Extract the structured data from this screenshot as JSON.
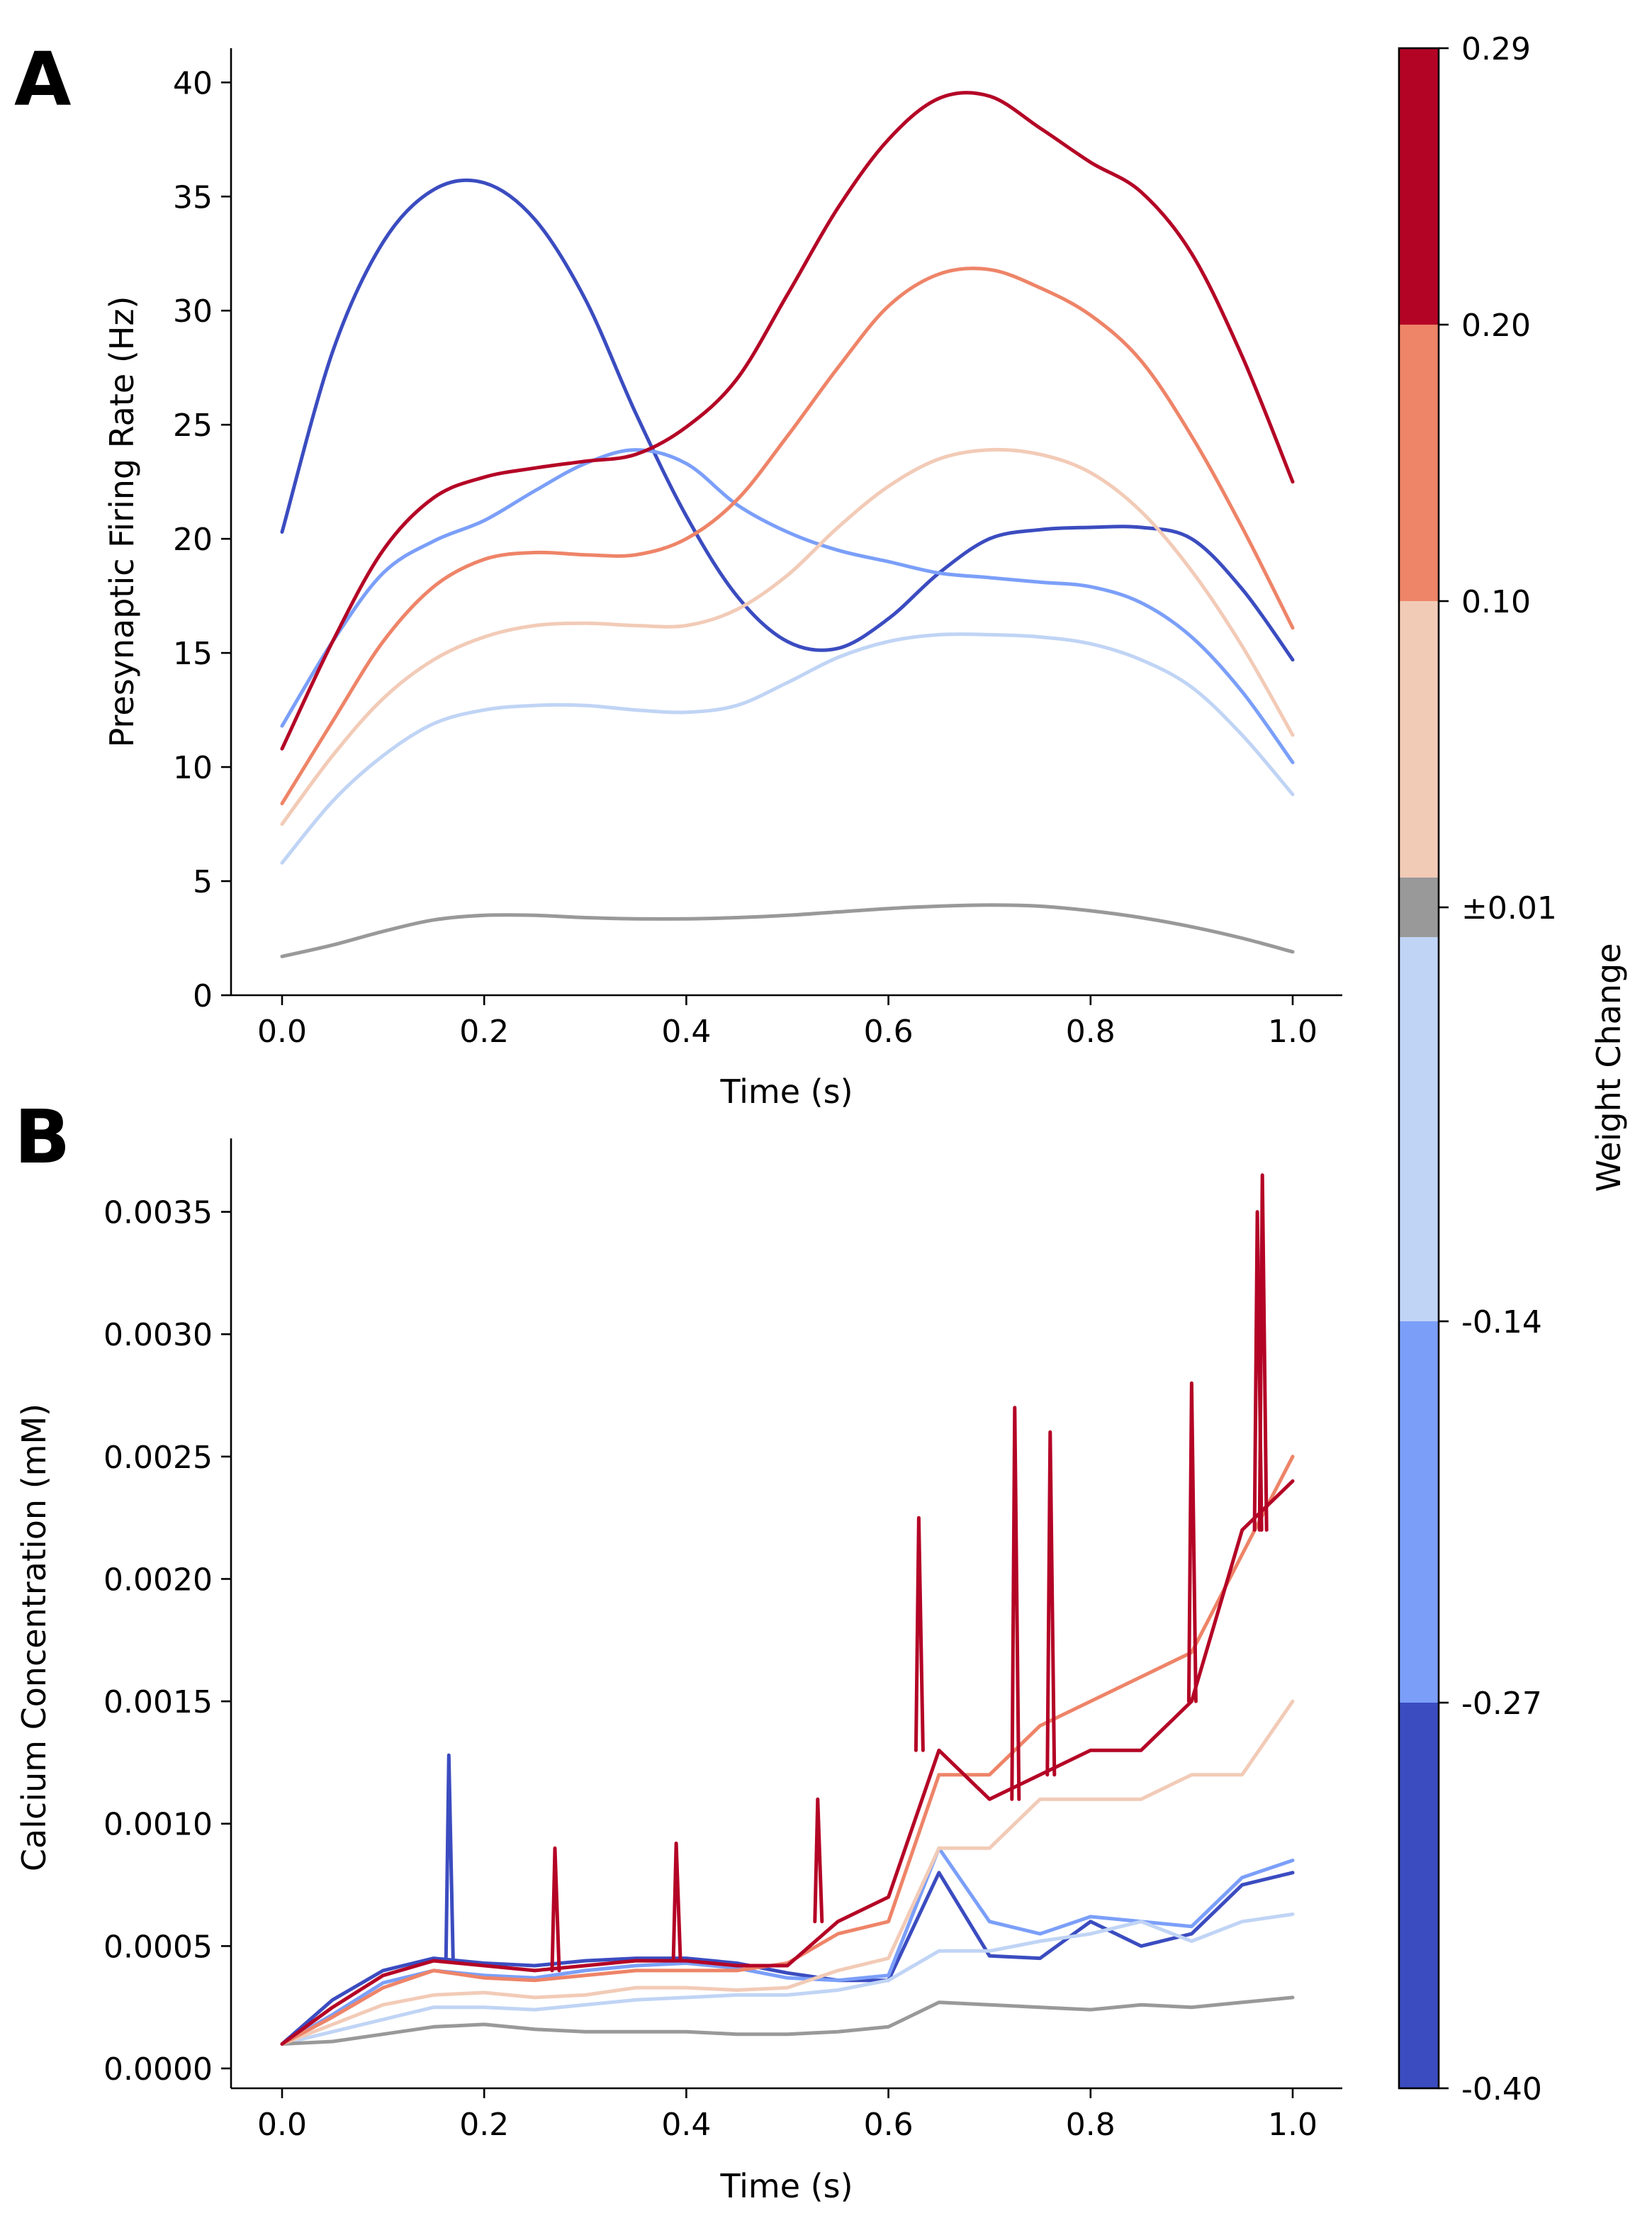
{
  "colors": {
    "w_m040": "#3b4cc0",
    "w_m027": "#7b9ff9",
    "w_m014": "#c0d4f5",
    "w_p001": "#999999",
    "w_p010": "#f2cbb7",
    "w_p020": "#ee8468",
    "w_p029": "#b40426"
  },
  "chart_data": [
    {
      "panel": "A",
      "type": "line",
      "xlabel": "Time (s)",
      "ylabel": "Presynaptic Firing Rate (Hz)",
      "xlim": [
        0.0,
        1.0
      ],
      "ylim": [
        0,
        41.5
      ],
      "xticks": [
        0.0,
        0.2,
        0.4,
        0.6,
        0.8,
        1.0
      ],
      "xtick_labels": [
        "0.0",
        "0.2",
        "0.4",
        "0.6",
        "0.8",
        "1.0"
      ],
      "yticks": [
        0,
        5,
        10,
        15,
        20,
        25,
        30,
        35,
        40
      ],
      "ytick_labels": [
        "0",
        "5",
        "10",
        "15",
        "20",
        "25",
        "30",
        "35",
        "40"
      ],
      "x": [
        0.0,
        0.05,
        0.1,
        0.15,
        0.2,
        0.25,
        0.3,
        0.35,
        0.4,
        0.45,
        0.5,
        0.55,
        0.6,
        0.65,
        0.7,
        0.75,
        0.8,
        0.85,
        0.9,
        0.95,
        1.0
      ],
      "series": [
        {
          "color_key": "w_m040",
          "values": [
            20.3,
            28.2,
            33.0,
            35.3,
            35.6,
            34.0,
            30.5,
            25.5,
            21.0,
            17.5,
            15.5,
            15.2,
            16.5,
            18.5,
            20.0,
            20.4,
            20.5,
            20.5,
            20.0,
            17.8,
            14.7
          ]
        },
        {
          "color_key": "w_m027",
          "values": [
            11.8,
            15.5,
            18.5,
            19.9,
            20.8,
            22.1,
            23.3,
            23.9,
            23.3,
            21.5,
            20.3,
            19.5,
            19.0,
            18.5,
            18.3,
            18.1,
            17.9,
            17.2,
            15.7,
            13.3,
            10.2
          ]
        },
        {
          "color_key": "w_m014",
          "values": [
            5.8,
            8.5,
            10.5,
            11.9,
            12.5,
            12.7,
            12.7,
            12.5,
            12.4,
            12.7,
            13.7,
            14.8,
            15.5,
            15.8,
            15.8,
            15.7,
            15.4,
            14.7,
            13.5,
            11.4,
            8.8
          ]
        },
        {
          "color_key": "w_p001",
          "values": [
            1.7,
            2.2,
            2.8,
            3.3,
            3.5,
            3.5,
            3.4,
            3.35,
            3.35,
            3.4,
            3.5,
            3.65,
            3.8,
            3.9,
            3.95,
            3.9,
            3.7,
            3.4,
            3.0,
            2.5,
            1.9
          ]
        },
        {
          "color_key": "w_p010",
          "values": [
            7.5,
            10.5,
            13.0,
            14.7,
            15.7,
            16.2,
            16.3,
            16.2,
            16.2,
            16.9,
            18.4,
            20.5,
            22.3,
            23.5,
            23.9,
            23.7,
            22.9,
            21.2,
            18.6,
            15.3,
            11.4
          ]
        },
        {
          "color_key": "w_p020",
          "values": [
            8.4,
            12.0,
            15.5,
            17.9,
            19.1,
            19.4,
            19.3,
            19.3,
            20.0,
            21.7,
            24.5,
            27.5,
            30.2,
            31.6,
            31.8,
            31.0,
            29.8,
            27.8,
            24.5,
            20.5,
            16.1
          ]
        },
        {
          "color_key": "w_p029",
          "values": [
            10.8,
            15.5,
            19.5,
            21.8,
            22.7,
            23.1,
            23.4,
            23.7,
            24.9,
            27.0,
            30.7,
            34.5,
            37.5,
            39.3,
            39.4,
            38.0,
            36.5,
            35.2,
            32.5,
            28.0,
            22.5
          ]
        }
      ]
    },
    {
      "panel": "B",
      "type": "line",
      "xlabel": "Time (s)",
      "ylabel": "Calcium Concentration (mM)",
      "xlim": [
        0.0,
        1.0
      ],
      "ylim": [
        0.0,
        0.0038
      ],
      "xticks": [
        0.0,
        0.2,
        0.4,
        0.6,
        0.8,
        1.0
      ],
      "xtick_labels": [
        "0.0",
        "0.2",
        "0.4",
        "0.6",
        "0.8",
        "1.0"
      ],
      "yticks": [
        0.0,
        0.0005,
        0.001,
        0.0015,
        0.002,
        0.0025,
        0.003,
        0.0035
      ],
      "ytick_labels": [
        "0.0000",
        "0.0005",
        "0.0010",
        "0.0015",
        "0.0020",
        "0.0025",
        "0.0030",
        "0.0035"
      ],
      "x": [
        0.0,
        0.05,
        0.1,
        0.15,
        0.2,
        0.25,
        0.3,
        0.35,
        0.4,
        0.45,
        0.5,
        0.55,
        0.6,
        0.65,
        0.7,
        0.75,
        0.8,
        0.85,
        0.9,
        0.95,
        1.0
      ],
      "series": [
        {
          "color_key": "w_m040",
          "values": [
            0.0001,
            0.00028,
            0.0004,
            0.00045,
            0.00043,
            0.00042,
            0.00044,
            0.00045,
            0.00045,
            0.00043,
            0.00039,
            0.00036,
            0.00036,
            0.0008,
            0.00046,
            0.00045,
            0.0006,
            0.0005,
            0.00055,
            0.00075,
            0.0008
          ]
        },
        {
          "color_key": "w_m027",
          "values": [
            0.0001,
            0.00022,
            0.00035,
            0.0004,
            0.00038,
            0.00037,
            0.0004,
            0.00042,
            0.00043,
            0.00041,
            0.00037,
            0.00036,
            0.00038,
            0.0009,
            0.0006,
            0.00055,
            0.00062,
            0.0006,
            0.00058,
            0.00078,
            0.00085
          ]
        },
        {
          "color_key": "w_m014",
          "values": [
            0.0001,
            0.00015,
            0.0002,
            0.00025,
            0.00025,
            0.00024,
            0.00026,
            0.00028,
            0.00029,
            0.0003,
            0.0003,
            0.00032,
            0.00036,
            0.00048,
            0.00048,
            0.00052,
            0.00055,
            0.0006,
            0.00052,
            0.0006,
            0.00063
          ]
        },
        {
          "color_key": "w_p001",
          "values": [
            0.0001,
            0.00011,
            0.00014,
            0.00017,
            0.00018,
            0.00016,
            0.00015,
            0.00015,
            0.00015,
            0.00014,
            0.00014,
            0.00015,
            0.00017,
            0.00027,
            0.00026,
            0.00025,
            0.00024,
            0.00026,
            0.00025,
            0.00027,
            0.00029
          ]
        },
        {
          "color_key": "w_p010",
          "values": [
            0.0001,
            0.00018,
            0.00026,
            0.0003,
            0.00031,
            0.00029,
            0.0003,
            0.00033,
            0.00033,
            0.00032,
            0.00033,
            0.0004,
            0.00045,
            0.0009,
            0.0009,
            0.0011,
            0.0011,
            0.0011,
            0.0012,
            0.0012,
            0.0015
          ]
        },
        {
          "color_key": "w_p020",
          "values": [
            0.0001,
            0.00021,
            0.00033,
            0.0004,
            0.00037,
            0.00036,
            0.00038,
            0.0004,
            0.0004,
            0.0004,
            0.00043,
            0.00055,
            0.0006,
            0.0012,
            0.0012,
            0.0014,
            0.0015,
            0.0016,
            0.0017,
            0.0021,
            0.0025
          ]
        },
        {
          "color_key": "w_p029",
          "values": [
            0.0001,
            0.00025,
            0.00038,
            0.00044,
            0.00042,
            0.0004,
            0.00042,
            0.00044,
            0.00044,
            0.00042,
            0.00042,
            0.0006,
            0.0007,
            0.0013,
            0.0011,
            0.0012,
            0.0013,
            0.0013,
            0.0015,
            0.0022,
            0.0024
          ]
        }
      ],
      "peaks": [
        {
          "color_key": "w_m040",
          "x": 0.165,
          "y": 0.00128
        },
        {
          "color_key": "w_p029",
          "x": 0.27,
          "y": 0.0009
        },
        {
          "color_key": "w_p029",
          "x": 0.39,
          "y": 0.00092
        },
        {
          "color_key": "w_p029",
          "x": 0.53,
          "y": 0.0011
        },
        {
          "color_key": "w_p029",
          "x": 0.63,
          "y": 0.00225
        },
        {
          "color_key": "w_p029",
          "x": 0.725,
          "y": 0.0027
        },
        {
          "color_key": "w_p029",
          "x": 0.76,
          "y": 0.0026
        },
        {
          "color_key": "w_p029",
          "x": 0.9,
          "y": 0.0028
        },
        {
          "color_key": "w_p029",
          "x": 0.965,
          "y": 0.0035
        },
        {
          "color_key": "w_p029",
          "x": 0.97,
          "y": 0.00365
        }
      ]
    },
    {
      "type": "colorbar",
      "label": "Weight Change",
      "tick_labels": [
        "0.29",
        "0.20",
        "0.10",
        "±0.01",
        "-0.14",
        "-0.27",
        "-0.40"
      ],
      "ticks": [
        0.29,
        0.2,
        0.1,
        0.01,
        -0.14,
        -0.27,
        -0.4
      ],
      "bands": [
        {
          "from": 0.2,
          "to": 0.29,
          "color_key": "w_p029"
        },
        {
          "from": 0.1,
          "to": 0.2,
          "color_key": "w_p020"
        },
        {
          "from": 0.01,
          "to": 0.1,
          "color_key": "w_p010"
        },
        {
          "from": -0.01,
          "to": 0.01,
          "color_key": "w_p001"
        },
        {
          "from": -0.14,
          "to": -0.01,
          "color_key": "w_m014"
        },
        {
          "from": -0.27,
          "to": -0.14,
          "color_key": "w_m027"
        },
        {
          "from": -0.4,
          "to": -0.27,
          "color_key": "w_m040"
        }
      ]
    }
  ],
  "panels": {
    "a_letter": "A",
    "b_letter": "B"
  }
}
